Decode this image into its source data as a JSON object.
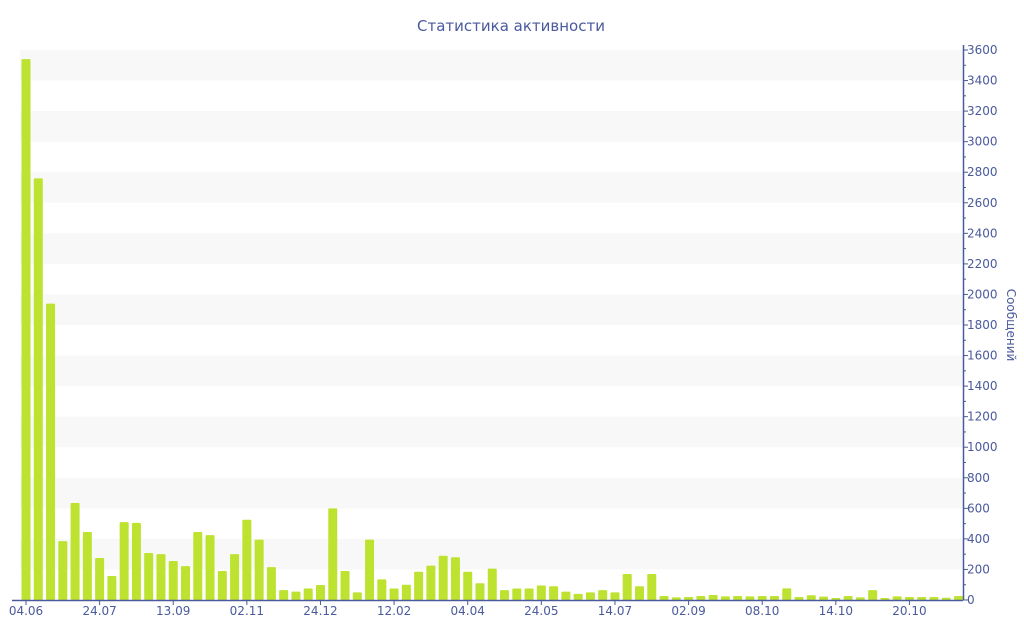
{
  "chart_data": {
    "type": "bar",
    "title": "Статистика активности",
    "ylabel": "Сообщений",
    "xlabel": "",
    "ylim": [
      0,
      3600
    ],
    "y_major_step": 200,
    "y_minor_step": 100,
    "y_axis_side": "right",
    "grid": "alternating horizontal bands",
    "legend": "none",
    "colors": {
      "bar": "#bde22f",
      "axis": "#4a5a9c",
      "band": "#f8f8f8"
    },
    "values": [
      3540,
      2760,
      1940,
      385,
      635,
      445,
      275,
      157,
      510,
      505,
      308,
      300,
      255,
      222,
      445,
      425,
      190,
      300,
      525,
      395,
      215,
      65,
      55,
      75,
      98,
      600,
      190,
      50,
      395,
      135,
      75,
      100,
      185,
      225,
      290,
      280,
      185,
      110,
      205,
      65,
      75,
      75,
      95,
      90,
      55,
      40,
      50,
      65,
      50,
      170,
      90,
      170,
      26,
      17,
      20,
      26,
      33,
      24,
      26,
      24,
      26,
      26,
      76,
      20,
      31,
      22,
      13,
      26,
      17,
      65,
      13,
      24,
      20,
      20,
      20,
      15,
      26
    ],
    "x_ticks": [
      {
        "index": 0,
        "label": "04.06"
      },
      {
        "index": 6,
        "label": "24.07"
      },
      {
        "index": 12,
        "label": "13.09"
      },
      {
        "index": 18,
        "label": "02.11"
      },
      {
        "index": 24,
        "label": "24.12"
      },
      {
        "index": 30,
        "label": "12.02"
      },
      {
        "index": 36,
        "label": "04.04"
      },
      {
        "index": 42,
        "label": "24.05"
      },
      {
        "index": 48,
        "label": "14.07"
      },
      {
        "index": 54,
        "label": "02.09"
      },
      {
        "index": 60,
        "label": "08.10"
      },
      {
        "index": 66,
        "label": "14.10"
      },
      {
        "index": 72,
        "label": "20.10"
      }
    ]
  }
}
